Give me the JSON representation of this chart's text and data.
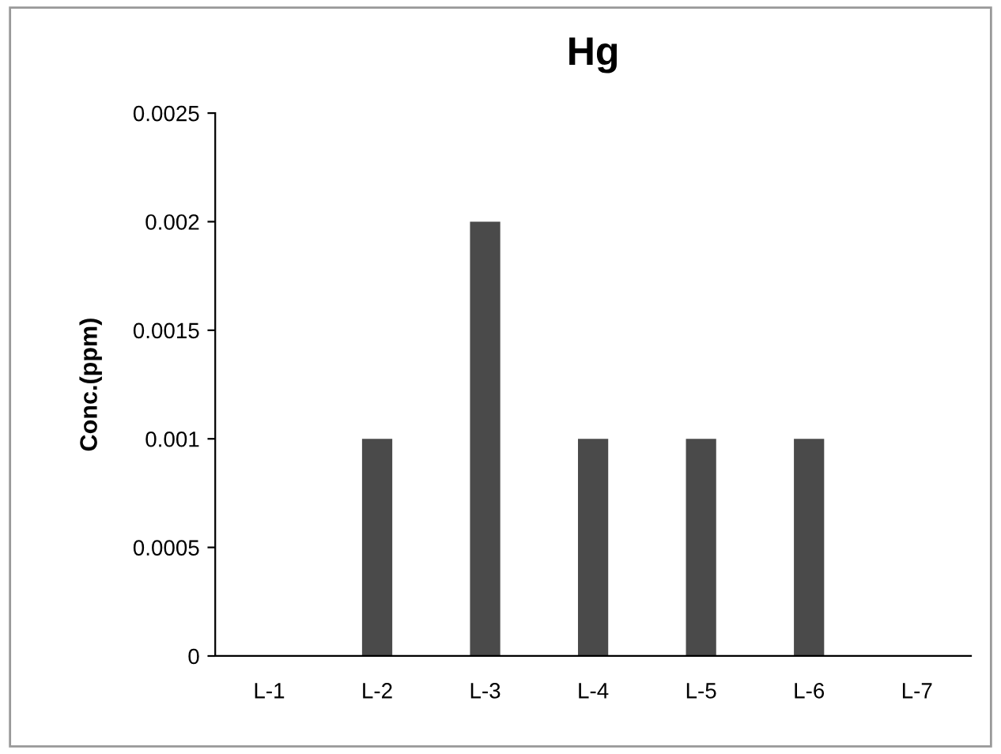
{
  "chart_data": {
    "type": "bar",
    "title": "Hg",
    "ylabel": "Conc.(ppm)",
    "categories": [
      "L-1",
      "L-2",
      "L-3",
      "L-4",
      "L-5",
      "L-6",
      "L-7"
    ],
    "values": [
      0,
      0.001,
      0.002,
      0.001,
      0.001,
      0.001,
      0
    ],
    "color": "#4a4a4a",
    "ylim": [
      0,
      0.0025
    ],
    "yticks": [
      0,
      0.0005,
      0.001,
      0.0015,
      0.002,
      0.0025
    ],
    "grid": false,
    "legend": false
  }
}
